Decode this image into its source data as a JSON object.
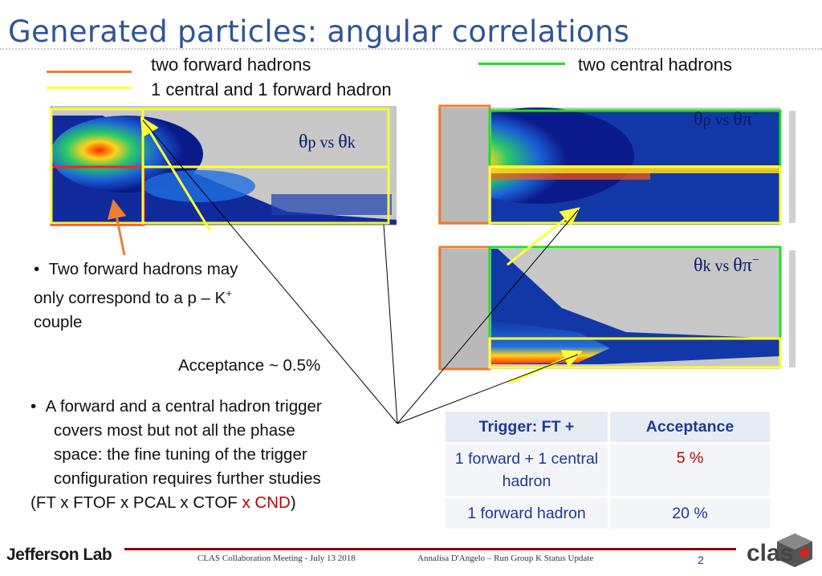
{
  "title": "Generated particles: angular correlations",
  "legend": {
    "items": [
      {
        "label": "two forward hadrons",
        "color": "#ed7d31"
      },
      {
        "label": "1 central and 1 forward hadron",
        "color": "#ffff33"
      },
      {
        "label": "two central hadrons",
        "color": "#22dd22"
      }
    ]
  },
  "plots": [
    {
      "label_main": "θ",
      "label_sub1": "p",
      "label_vs": " vs ",
      "label_main2": "θ",
      "label_sub2": "k",
      "label_sup": ""
    },
    {
      "label_main": "θ",
      "label_sub1": "p",
      "label_vs": " vs ",
      "label_main2": "θπ",
      "label_sub2": "",
      "label_sup": "−"
    },
    {
      "label_main": "θ",
      "label_sub1": "k",
      "label_vs": " vs ",
      "label_main2": "θπ",
      "label_sub2": "",
      "label_sup": "−"
    }
  ],
  "bullets": {
    "b1_line1": "Two forward hadrons may",
    "b1_line2_pre": "only correspond to a p – K",
    "b1_line2_sup": "+",
    "b1_line3": "couple",
    "acceptance": "Acceptance ~ 0.5%",
    "b2_line1": "A forward and a central hadron trigger",
    "b2_line2": "covers most but not all the phase",
    "b2_line3": "space: the fine tuning of the trigger",
    "b2_line4": "configuration requires further studies",
    "b2_line5_pre": "(FT x FTOF x PCAL x CTOF ",
    "b2_line5_red": "x CND",
    "b2_line5_post": ")"
  },
  "table": {
    "headers": [
      "Trigger: FT +",
      "Acceptance"
    ],
    "rows": [
      {
        "trigger": "1 forward + 1 central hadron",
        "acceptance": "5 %",
        "acc_color": "#c00000"
      },
      {
        "trigger": "1 forward hadron",
        "acceptance": "20 %",
        "acc_color": "#1f3a93"
      }
    ]
  },
  "footer": {
    "logo_left": "Jefferson Lab",
    "meeting": "CLAS Collaboration Meeting  - July 13  2018",
    "author": "Annalisa D'Angelo – Run Group K Status Update",
    "page": "2",
    "logo_right": "clas"
  }
}
